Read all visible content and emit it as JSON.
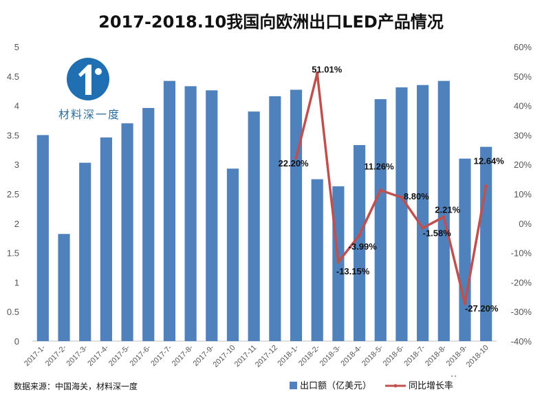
{
  "logo": {
    "text": "材料深一度",
    "color": "#1f6fb2"
  },
  "source_note": "数据来源：中国海关，材料深一度",
  "watermark": {
    "text": "材料深一度",
    "icon": "wechat-icon"
  },
  "chart_data": {
    "type": "bar+line",
    "title": "2017-2018.10我国向欧洲出口LED产品情况",
    "categories": [
      "2017-1-",
      "2017-2-",
      "2017-3-",
      "2017-4-",
      "2017-5-",
      "2017-6-",
      "2017-7-",
      "2017-8-",
      "2017-9-",
      "2017-10",
      "2017-11",
      "2017-12",
      "2018-1-",
      "2018-2-",
      "2018-3-",
      "2018-4-",
      "2018-5-",
      "2018-6-",
      "2018-7-",
      "2018-8-",
      "2018-9-",
      "2018-10"
    ],
    "bar_series": {
      "name": "出口额（亿美元）",
      "color": "#4f81bd",
      "values": [
        3.5,
        1.82,
        3.03,
        3.46,
        3.7,
        3.96,
        4.42,
        4.33,
        4.26,
        2.93,
        3.9,
        4.16,
        4.27,
        2.75,
        2.63,
        3.33,
        4.11,
        4.31,
        4.35,
        4.42,
        3.1,
        3.3
      ]
    },
    "line_series": {
      "name": "同比增长率",
      "color": "#c0504d",
      "start_index": 12,
      "values": [
        22.2,
        51.01,
        -13.15,
        -3.99,
        11.26,
        8.8,
        -1.58,
        2.21,
        -27.2,
        12.64
      ],
      "labels": [
        "22.20%",
        "51.01%",
        "-13.15%",
        "-3.99%",
        "11.26%",
        "8.80%",
        "-1.58%",
        "2.21%",
        "-27.20%",
        "12.64%"
      ]
    },
    "y_left": {
      "ticks": [
        "0",
        "0.5",
        "1",
        "1.5",
        "2",
        "2.5",
        "3",
        "3.5",
        "4",
        "4.5",
        "5"
      ],
      "range": [
        0,
        5
      ]
    },
    "y_right": {
      "ticks": [
        "-40%",
        "-30%",
        "-20%",
        "-10%",
        "0%",
        "10%",
        "20%",
        "30%",
        "40%",
        "50%",
        "60%"
      ],
      "range": [
        -40,
        60
      ]
    },
    "legend_position": "bottom",
    "grid": false
  }
}
